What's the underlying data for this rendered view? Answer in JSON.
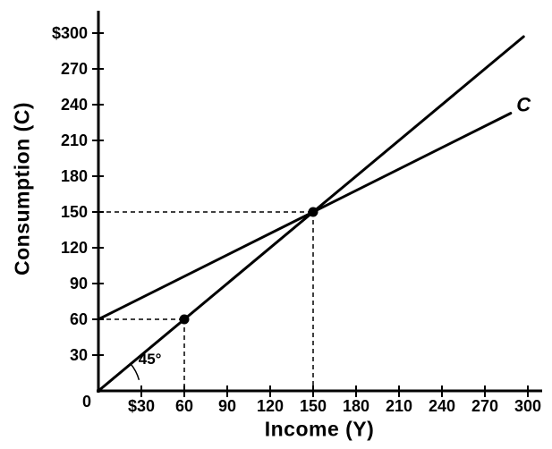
{
  "figure": {
    "origin_label": "0",
    "ink_color": "#000000",
    "background_color": "#ffffff"
  },
  "chart_data": {
    "type": "line",
    "title": "",
    "xlabel": "Income (Y)",
    "ylabel": "Consumption (C)",
    "xlim": [
      0,
      310
    ],
    "ylim": [
      0,
      310
    ],
    "grid": false,
    "legend": "none",
    "x_ticks": {
      "values": [
        30,
        60,
        90,
        120,
        150,
        180,
        210,
        240,
        270,
        300
      ],
      "labels": [
        "$30",
        "60",
        "90",
        "120",
        "150",
        "180",
        "210",
        "240",
        "270",
        "300"
      ]
    },
    "y_ticks": {
      "values": [
        300,
        270,
        240,
        210,
        180,
        150,
        120,
        90,
        60,
        30
      ],
      "labels": [
        "$300",
        "270",
        "240",
        "210",
        "180",
        "150",
        "120",
        "90",
        "60",
        "30"
      ]
    },
    "series": [
      {
        "name": "45-degree-line",
        "x": [
          0,
          297
        ],
        "y": [
          0,
          297
        ]
      },
      {
        "name": "consumption-function",
        "x": [
          0,
          288
        ],
        "y": [
          60,
          232.8
        ]
      }
    ],
    "marked_points": [
      {
        "x": 60,
        "y": 60
      },
      {
        "x": 150,
        "y": 150
      }
    ],
    "guides_dashed": true,
    "annotations": [
      {
        "text": "45°",
        "x": 36,
        "y": 27,
        "kind": "angle-label"
      },
      {
        "text": "C",
        "x": 297,
        "y": 239,
        "kind": "series-label"
      }
    ]
  }
}
